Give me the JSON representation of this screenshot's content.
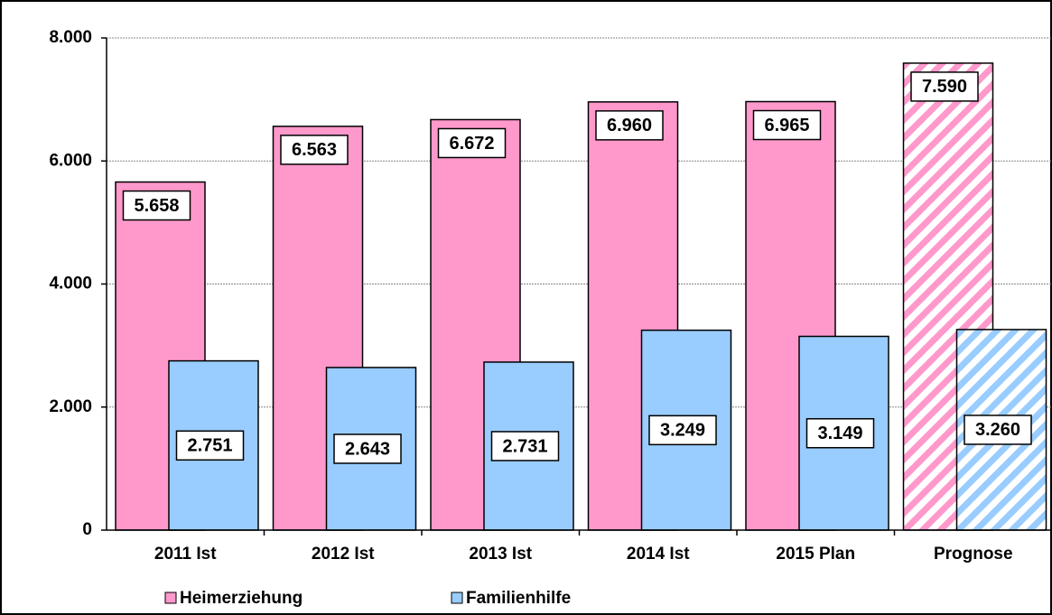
{
  "chart_data": {
    "type": "bar",
    "categories": [
      "2011 Ist",
      "2012 Ist",
      "2013 Ist",
      "2014 Ist",
      "2015 Plan",
      "Prognose"
    ],
    "series": [
      {
        "name": "Heimerziehung",
        "color": "#ff99cc",
        "values": [
          5658,
          6563,
          6672,
          6960,
          6965,
          7590
        ],
        "value_labels": [
          "5.658",
          "6.563",
          "6.672",
          "6.960",
          "6.965",
          "7.590"
        ]
      },
      {
        "name": "Familienhilfe",
        "color": "#99ccff",
        "values": [
          2751,
          2643,
          2731,
          3249,
          3149,
          3260
        ],
        "value_labels": [
          "2.751",
          "2.643",
          "2.731",
          "3.249",
          "3.149",
          "3.260"
        ]
      }
    ],
    "hatched": [
      false,
      false,
      false,
      false,
      false,
      true
    ],
    "ylim": [
      0,
      8000
    ],
    "yticks": [
      0,
      {
        "value": 2000,
        "label": "2.000"
      },
      {
        "value": 4000,
        "label": "4.000"
      },
      {
        "value": 6000,
        "label": "6.000"
      },
      {
        "value": 8000,
        "label": "8.000"
      }
    ],
    "grid": true,
    "legend": "bottom"
  }
}
